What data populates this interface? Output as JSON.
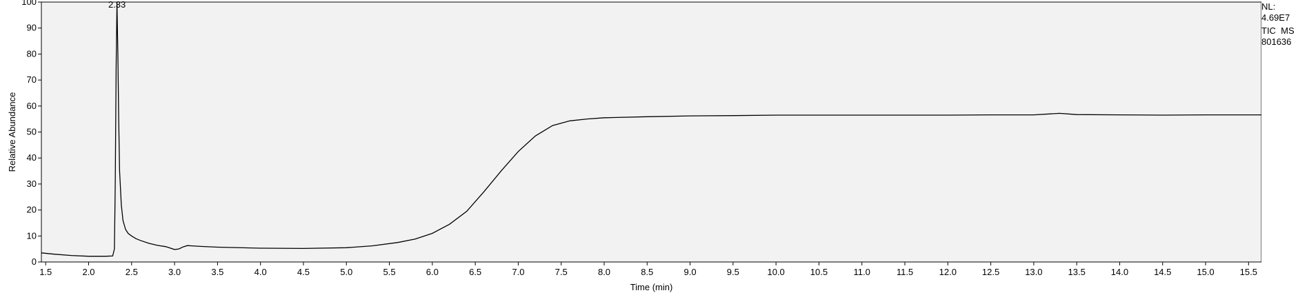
{
  "chart_data": {
    "type": "line",
    "title": "",
    "xlabel": "Time (min)",
    "ylabel": "Relative Abundance",
    "xlim": [
      1.45,
      15.65
    ],
    "ylim": [
      0,
      100
    ],
    "x_ticks": [
      1.5,
      2.0,
      2.5,
      3.0,
      3.5,
      4.0,
      4.5,
      5.0,
      5.5,
      6.0,
      6.5,
      7.0,
      7.5,
      8.0,
      8.5,
      9.0,
      9.5,
      10.0,
      10.5,
      11.0,
      11.5,
      12.0,
      12.5,
      13.0,
      13.5,
      14.0,
      14.5,
      15.0,
      15.5
    ],
    "x_tick_labels": [
      "1.5",
      "2.0",
      "2.5",
      "3.0",
      "3.5",
      "4.0",
      "4.5",
      "5.0",
      "5.5",
      "6.0",
      "6.5",
      "7.0",
      "7.5",
      "8.0",
      "8.5",
      "9.0",
      "9.5",
      "10.0",
      "10.5",
      "11.0",
      "11.5",
      "12.0",
      "12.5",
      "13.0",
      "13.5",
      "14.0",
      "14.5",
      "15.0",
      "15.5"
    ],
    "y_ticks": [
      0,
      10,
      20,
      30,
      40,
      50,
      60,
      70,
      80,
      90,
      100
    ],
    "y_tick_labels": [
      "0",
      "10",
      "20",
      "30",
      "40",
      "50",
      "60",
      "70",
      "80",
      "90",
      "100"
    ],
    "grid": false,
    "background": "#f2f2f2",
    "line_color": "#000000",
    "peak_label": {
      "x": 2.33,
      "y": 100,
      "text": "2.33"
    },
    "info": {
      "nl_label": "NL:",
      "nl_value": "4.69E7",
      "scan": "TIC  MS",
      "file": "801636"
    },
    "series": [
      {
        "x": [
          1.45,
          1.6,
          1.8,
          2.0,
          2.2,
          2.28,
          2.3,
          2.31,
          2.32,
          2.33,
          2.34,
          2.35,
          2.36,
          2.38,
          2.4,
          2.43,
          2.46,
          2.5,
          2.55,
          2.6,
          2.7,
          2.8,
          2.9,
          3.0,
          3.05,
          3.1,
          3.15,
          3.2,
          3.3,
          3.5,
          4.0,
          4.5,
          5.0,
          5.3,
          5.6,
          5.8,
          6.0,
          6.2,
          6.4,
          6.6,
          6.8,
          7.0,
          7.2,
          7.4,
          7.6,
          7.8,
          8.0,
          8.5,
          9.0,
          9.5,
          10.0,
          10.5,
          11.0,
          11.5,
          12.0,
          12.5,
          13.0,
          13.3,
          13.5,
          14.0,
          14.5,
          15.0,
          15.5,
          15.65
        ],
        "y": [
          3.5,
          3.0,
          2.5,
          2.2,
          2.2,
          2.3,
          5,
          30,
          75,
          100,
          80,
          55,
          35,
          22,
          16,
          12.5,
          11,
          10,
          9,
          8.3,
          7.2,
          6.4,
          5.9,
          4.8,
          5.0,
          5.8,
          6.3,
          6.2,
          6.0,
          5.7,
          5.3,
          5.2,
          5.5,
          6.2,
          7.5,
          8.8,
          11,
          14.5,
          19.5,
          27,
          35,
          42.5,
          48.5,
          52.5,
          54.3,
          55.0,
          55.5,
          55.9,
          56.2,
          56.3,
          56.5,
          56.5,
          56.5,
          56.5,
          56.5,
          56.6,
          56.6,
          57.2,
          56.7,
          56.6,
          56.5,
          56.6,
          56.6,
          56.6
        ]
      }
    ]
  }
}
